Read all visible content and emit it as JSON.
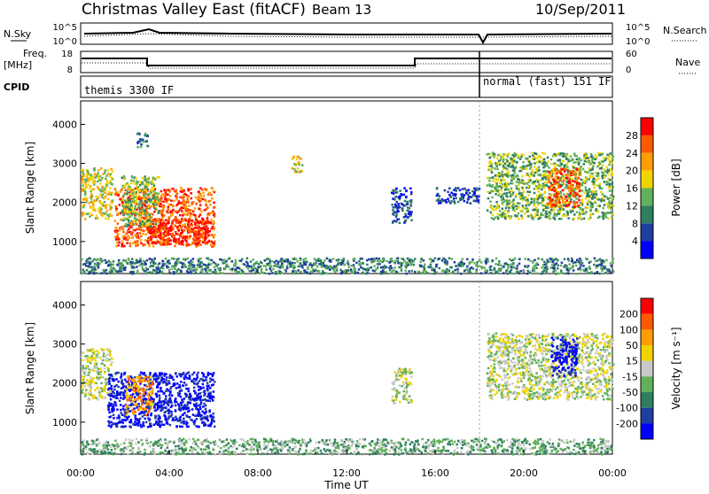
{
  "header": {
    "title": "Christmas Valley East (fitACF)",
    "beam": "Beam 13",
    "date": "10/Sep/2011"
  },
  "summary": {
    "nsky_label": "N.Sky",
    "nsearch_label": "N.Search",
    "nsky_ticks": [
      "10^5",
      "10^0"
    ],
    "nsearch_ticks": [
      "10^5",
      "10^0"
    ],
    "freq_label": "Freq.",
    "freq_unit": "[MHz]",
    "freq_ticks": [
      "18",
      "8"
    ],
    "nave_label": "Nave",
    "nave_ticks": [
      "60",
      "0"
    ],
    "cpid_label": "CPID",
    "cpid_segments": [
      "themis 3300 IF",
      "normal (fast) 151 IF"
    ]
  },
  "chart_data": [
    {
      "type": "heatmap",
      "title": "",
      "xlabel": "Time UT",
      "ylabel": "Slant Range [km]",
      "x_ticks": [
        "00:00",
        "04:00",
        "08:00",
        "12:00",
        "16:00",
        "20:00",
        "00:00"
      ],
      "y_ticks": [
        "1000",
        "2000",
        "3000",
        "4000"
      ],
      "xlim": [
        0,
        24
      ],
      "ylim": [
        180,
        4600
      ],
      "colorbar": {
        "label": "Power [dB]",
        "ticks": [
          "28",
          "24",
          "20",
          "16",
          "12",
          "8",
          "4"
        ],
        "colors": [
          "#0000ff",
          "#1f3fa0",
          "#2f7f5f",
          "#62b15a",
          "#f0d400",
          "#ff9d00",
          "#ff5a00",
          "#ff0000"
        ]
      },
      "regions": [
        {
          "t0": 0.0,
          "t1": 1.4,
          "r0": 1600,
          "r1": 2900,
          "level": 4
        },
        {
          "t0": 1.5,
          "t1": 6.0,
          "r0": 900,
          "r1": 2400,
          "level": 6
        },
        {
          "t0": 3.0,
          "t1": 5.8,
          "r0": 950,
          "r1": 1600,
          "level": 7
        },
        {
          "t0": 1.8,
          "t1": 3.5,
          "r0": 1400,
          "r1": 2700,
          "level": 3
        },
        {
          "t0": 2.5,
          "t1": 3.0,
          "r0": 3400,
          "r1": 3800,
          "level": 2
        },
        {
          "t0": 9.5,
          "t1": 10.0,
          "r0": 2800,
          "r1": 3200,
          "level": 4
        },
        {
          "t0": 14.0,
          "t1": 14.9,
          "r0": 1500,
          "r1": 2400,
          "level": 1
        },
        {
          "t0": 16.0,
          "t1": 18.0,
          "r0": 2000,
          "r1": 2400,
          "level": 1
        },
        {
          "t0": 18.3,
          "t1": 24.0,
          "r0": 1600,
          "r1": 3300,
          "level": 3
        },
        {
          "t0": 21.0,
          "t1": 22.5,
          "r0": 1900,
          "r1": 2900,
          "level": 6
        },
        {
          "t0": 0.0,
          "t1": 24.0,
          "r0": 200,
          "r1": 600,
          "level": 2
        }
      ]
    },
    {
      "type": "heatmap",
      "title": "",
      "xlabel": "Time UT",
      "ylabel": "Slant Range [km]",
      "x_ticks": [
        "00:00",
        "04:00",
        "08:00",
        "12:00",
        "16:00",
        "20:00",
        "00:00"
      ],
      "y_ticks": [
        "1000",
        "2000",
        "3000",
        "4000"
      ],
      "xlim": [
        0,
        24
      ],
      "ylim": [
        180,
        4600
      ],
      "colorbar": {
        "label": "Velocity [m s⁻¹]",
        "ticks": [
          "200",
          "100",
          "50",
          "15",
          "-15",
          "-50",
          "-100",
          "-200"
        ],
        "colors": [
          "#0000ff",
          "#1f3fa0",
          "#2f7f5f",
          "#62b15a",
          "#c9c9c9",
          "#f0d400",
          "#ff9d00",
          "#ff5a00",
          "#ff0000"
        ]
      },
      "regions": [
        {
          "t0": 0.0,
          "t1": 1.4,
          "r0": 1600,
          "r1": 2900,
          "level": 4
        },
        {
          "t0": 1.2,
          "t1": 6.0,
          "r0": 900,
          "r1": 2300,
          "level": 0
        },
        {
          "t0": 2.0,
          "t1": 3.2,
          "r0": 1200,
          "r1": 2200,
          "level": 6
        },
        {
          "t0": 14.0,
          "t1": 14.9,
          "r0": 1500,
          "r1": 2400,
          "level": 4
        },
        {
          "t0": 18.3,
          "t1": 24.0,
          "r0": 1600,
          "r1": 3300,
          "level": 4
        },
        {
          "t0": 21.2,
          "t1": 22.4,
          "r0": 2200,
          "r1": 3200,
          "level": 0
        },
        {
          "t0": 0.0,
          "t1": 24.0,
          "r0": 200,
          "r1": 600,
          "level": 3
        }
      ]
    }
  ]
}
